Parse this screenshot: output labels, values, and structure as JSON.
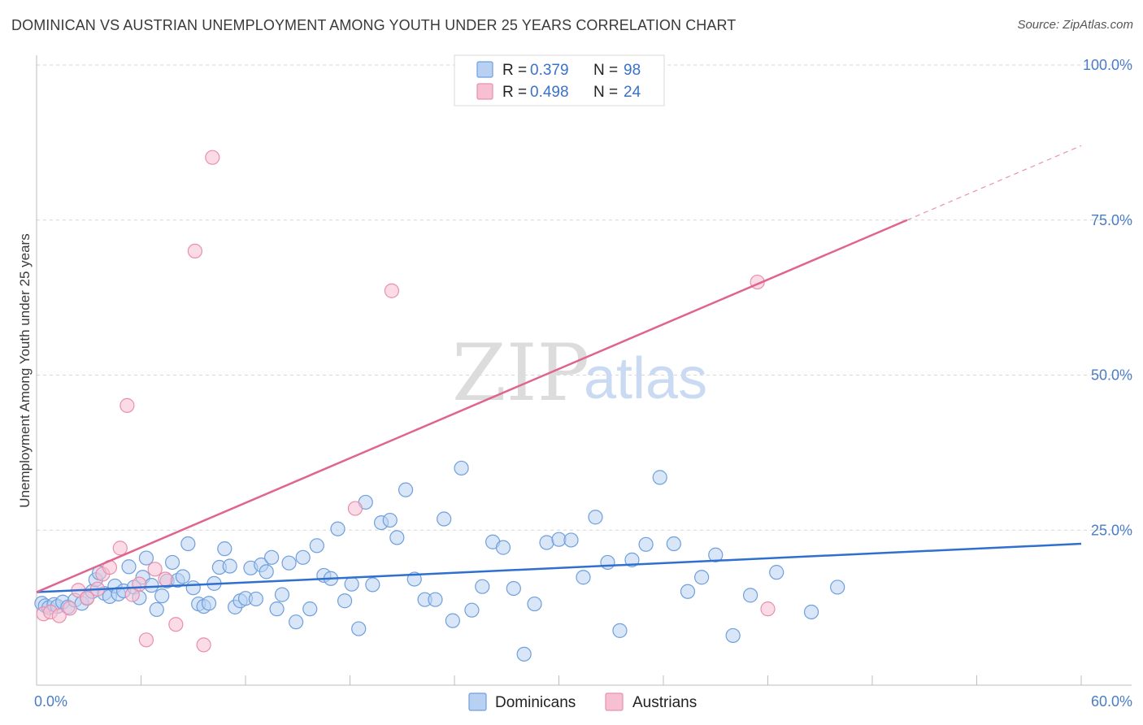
{
  "title": "DOMINICAN VS AUSTRIAN UNEMPLOYMENT AMONG YOUTH UNDER 25 YEARS CORRELATION CHART",
  "source": "Source: ZipAtlas.com",
  "watermark": {
    "zip": "ZIP",
    "atlas": "atlas"
  },
  "legend": {
    "r_label": "R =",
    "n_label": "N =",
    "rows": [
      {
        "r": "0.379",
        "n": "98"
      },
      {
        "r": "0.498",
        "n": "24"
      }
    ]
  },
  "colors": {
    "dominican_fill": "#b8d1f3",
    "dominican_stroke": "#6f9fdc",
    "dominican_line": "#2f6fd0",
    "austrian_fill": "#f7c0d2",
    "austrian_stroke": "#e88fae",
    "austrian_line": "#e0648e",
    "grid": "#d6d6d6",
    "axis_text": "#4a7cc9"
  },
  "chart_data": {
    "type": "scatter",
    "title": "DOMINICAN VS AUSTRIAN UNEMPLOYMENT AMONG YOUTH UNDER 25 YEARS CORRELATION CHART",
    "xlabel": "",
    "ylabel": "Unemployment Among Youth under 25 years",
    "xlim": [
      0,
      60
    ],
    "ylim": [
      0,
      100
    ],
    "x_tick_labels": [
      "0.0%",
      "60.0%"
    ],
    "y_ticks": [
      25,
      50,
      75,
      100
    ],
    "y_tick_labels": [
      "25.0%",
      "50.0%",
      "75.0%",
      "100.0%"
    ],
    "legend_position": "top-center",
    "series": [
      {
        "name": "Dominicans",
        "r": 0.379,
        "n": 98,
        "trend": {
          "x0": 0,
          "y0": 15.0,
          "x1": 60,
          "y1": 22.8
        },
        "points": [
          [
            0.3,
            13.2
          ],
          [
            0.5,
            12.8
          ],
          [
            0.7,
            12.5
          ],
          [
            1.0,
            13.0
          ],
          [
            1.2,
            12.7
          ],
          [
            1.5,
            13.4
          ],
          [
            1.8,
            12.6
          ],
          [
            2.2,
            13.7
          ],
          [
            2.6,
            13.2
          ],
          [
            2.9,
            14.1
          ],
          [
            3.2,
            15.1
          ],
          [
            3.4,
            17.0
          ],
          [
            3.6,
            18.1
          ],
          [
            3.9,
            14.8
          ],
          [
            4.2,
            14.3
          ],
          [
            4.5,
            16.0
          ],
          [
            4.7,
            14.7
          ],
          [
            5.0,
            15.2
          ],
          [
            5.3,
            19.1
          ],
          [
            5.6,
            15.8
          ],
          [
            5.9,
            14.1
          ],
          [
            6.1,
            17.4
          ],
          [
            6.3,
            20.5
          ],
          [
            6.6,
            16.1
          ],
          [
            6.9,
            12.2
          ],
          [
            7.2,
            14.4
          ],
          [
            7.5,
            16.8
          ],
          [
            7.8,
            19.8
          ],
          [
            8.1,
            16.9
          ],
          [
            8.4,
            17.5
          ],
          [
            8.7,
            22.8
          ],
          [
            9.0,
            15.7
          ],
          [
            9.3,
            13.1
          ],
          [
            9.6,
            12.7
          ],
          [
            9.9,
            13.2
          ],
          [
            10.2,
            16.4
          ],
          [
            10.5,
            19.0
          ],
          [
            10.8,
            22.0
          ],
          [
            11.1,
            19.2
          ],
          [
            11.4,
            12.6
          ],
          [
            11.7,
            13.6
          ],
          [
            12.0,
            14.0
          ],
          [
            12.3,
            18.9
          ],
          [
            12.6,
            13.9
          ],
          [
            12.9,
            19.4
          ],
          [
            13.2,
            18.3
          ],
          [
            13.5,
            20.6
          ],
          [
            13.8,
            12.3
          ],
          [
            14.1,
            14.6
          ],
          [
            14.5,
            19.7
          ],
          [
            14.9,
            10.2
          ],
          [
            15.3,
            20.6
          ],
          [
            15.7,
            12.3
          ],
          [
            16.1,
            22.5
          ],
          [
            16.5,
            17.7
          ],
          [
            16.9,
            17.2
          ],
          [
            17.3,
            25.2
          ],
          [
            17.7,
            13.6
          ],
          [
            18.1,
            16.3
          ],
          [
            18.5,
            9.1
          ],
          [
            18.9,
            29.5
          ],
          [
            19.3,
            16.2
          ],
          [
            19.8,
            26.2
          ],
          [
            20.3,
            26.6
          ],
          [
            20.7,
            23.8
          ],
          [
            21.2,
            31.5
          ],
          [
            21.7,
            17.1
          ],
          [
            22.3,
            13.8
          ],
          [
            22.9,
            13.8
          ],
          [
            23.4,
            26.8
          ],
          [
            23.9,
            10.4
          ],
          [
            24.4,
            35.0
          ],
          [
            25.0,
            12.1
          ],
          [
            25.6,
            15.9
          ],
          [
            26.2,
            23.1
          ],
          [
            26.8,
            22.2
          ],
          [
            27.4,
            15.6
          ],
          [
            28.0,
            5.0
          ],
          [
            28.6,
            13.1
          ],
          [
            29.3,
            23.0
          ],
          [
            30.0,
            23.5
          ],
          [
            30.7,
            23.4
          ],
          [
            31.4,
            17.4
          ],
          [
            32.1,
            27.1
          ],
          [
            32.8,
            19.8
          ],
          [
            33.5,
            8.8
          ],
          [
            34.2,
            20.2
          ],
          [
            35.0,
            22.7
          ],
          [
            35.8,
            33.5
          ],
          [
            36.6,
            22.8
          ],
          [
            37.4,
            15.1
          ],
          [
            38.2,
            17.4
          ],
          [
            39.0,
            21.0
          ],
          [
            40.0,
            8.0
          ],
          [
            41.0,
            14.5
          ],
          [
            42.5,
            18.2
          ],
          [
            44.5,
            11.8
          ],
          [
            46.0,
            15.8
          ]
        ]
      },
      {
        "name": "Austrians",
        "r": 0.498,
        "n": 24,
        "trend": {
          "x0": 0,
          "y0": 15.0,
          "x1": 50,
          "y1": 75.0,
          "x_dash_end": 60,
          "y_dash_end": 87.0
        },
        "points": [
          [
            0.4,
            11.5
          ],
          [
            0.8,
            11.8
          ],
          [
            1.3,
            11.2
          ],
          [
            1.9,
            12.4
          ],
          [
            2.4,
            15.3
          ],
          [
            2.9,
            14.0
          ],
          [
            3.5,
            15.5
          ],
          [
            3.8,
            17.9
          ],
          [
            4.2,
            19.0
          ],
          [
            4.8,
            22.1
          ],
          [
            5.2,
            45.1
          ],
          [
            5.5,
            14.6
          ],
          [
            5.9,
            16.3
          ],
          [
            6.3,
            7.3
          ],
          [
            6.8,
            18.7
          ],
          [
            7.4,
            17.1
          ],
          [
            8.0,
            9.8
          ],
          [
            9.1,
            70.0
          ],
          [
            9.6,
            6.5
          ],
          [
            10.1,
            85.1
          ],
          [
            18.3,
            28.5
          ],
          [
            20.4,
            63.6
          ],
          [
            41.4,
            65.0
          ],
          [
            42.0,
            12.3
          ]
        ]
      }
    ]
  },
  "bottom_legend": [
    "Dominicans",
    "Austrians"
  ]
}
